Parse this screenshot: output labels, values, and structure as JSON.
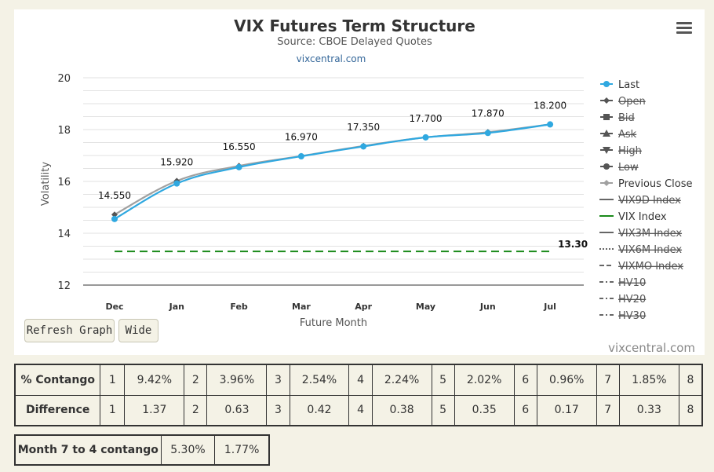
{
  "chart": {
    "title": "VIX Futures Term Structure",
    "subtitle": "Source: CBOE Delayed Quotes",
    "source_link": "vixcentral.com",
    "credit": "vixcentral.com",
    "menu_icon": "hamburger-menu-icon"
  },
  "buttons": {
    "refresh_label": "Refresh Graph",
    "wide_label": "Wide"
  },
  "chart_data": {
    "type": "line",
    "categories": [
      "Dec",
      "Jan",
      "Feb",
      "Mar",
      "Apr",
      "May",
      "Jun",
      "Jul"
    ],
    "xlabel": "Future Month",
    "ylabel": "Volatility",
    "ylim": [
      12,
      20
    ],
    "yticks": [
      "12",
      "14",
      "16",
      "18",
      "20"
    ],
    "grid": true,
    "legend_position": "right",
    "series": [
      {
        "name": "Last",
        "values": [
          14.55,
          15.92,
          16.55,
          16.97,
          17.35,
          17.7,
          17.87,
          18.2
        ],
        "color": "#2fa8e0",
        "marker": "circle"
      },
      {
        "name": "Previous Close",
        "values": [
          14.72,
          16.02,
          16.6,
          16.98,
          17.37,
          17.7,
          17.9,
          18.2
        ],
        "color": "#a0a0a0",
        "marker": "diamond"
      }
    ],
    "data_labels": [
      "14.550",
      "15.920",
      "16.550",
      "16.970",
      "17.350",
      "17.700",
      "17.870",
      "18.200"
    ],
    "vix_index": {
      "value": 13.3,
      "label": "13.30",
      "color": "#1a8a1a"
    }
  },
  "legend": [
    {
      "label": "Last",
      "hidden": false,
      "symbol": "circle",
      "color": "#2fa8e0"
    },
    {
      "label": "Open",
      "hidden": true,
      "symbol": "diamond",
      "color": "#555"
    },
    {
      "label": "Bid",
      "hidden": true,
      "symbol": "square",
      "color": "#555"
    },
    {
      "label": "Ask",
      "hidden": true,
      "symbol": "triangle",
      "color": "#555"
    },
    {
      "label": "High",
      "hidden": true,
      "symbol": "triangle-down",
      "color": "#555"
    },
    {
      "label": "Low",
      "hidden": true,
      "symbol": "circle",
      "color": "#555"
    },
    {
      "label": "Previous Close",
      "hidden": false,
      "symbol": "diamond",
      "color": "#a0a0a0"
    },
    {
      "label": "VIX9D Index",
      "hidden": true,
      "symbol": "line",
      "color": "#666"
    },
    {
      "label": "VIX Index",
      "hidden": false,
      "symbol": "line",
      "color": "#1a8a1a"
    },
    {
      "label": "VIX3M Index",
      "hidden": true,
      "symbol": "line",
      "color": "#666"
    },
    {
      "label": "VIX6M Index",
      "hidden": true,
      "symbol": "dotted",
      "color": "#666"
    },
    {
      "label": "VIXMO Index",
      "hidden": true,
      "symbol": "dashed",
      "color": "#666"
    },
    {
      "label": "HV10",
      "hidden": true,
      "symbol": "dashdot",
      "color": "#666"
    },
    {
      "label": "HV20",
      "hidden": true,
      "symbol": "dashdot",
      "color": "#666"
    },
    {
      "label": "HV30",
      "hidden": true,
      "symbol": "dashdot",
      "color": "#666"
    }
  ],
  "contango_table": {
    "rows": [
      {
        "label": "% Contango",
        "cells": [
          "1",
          "9.42%",
          "2",
          "3.96%",
          "3",
          "2.54%",
          "4",
          "2.24%",
          "5",
          "2.02%",
          "6",
          "0.96%",
          "7",
          "1.85%",
          "8"
        ]
      },
      {
        "label": "Difference",
        "cells": [
          "1",
          "1.37",
          "2",
          "0.63",
          "3",
          "0.42",
          "4",
          "0.38",
          "5",
          "0.35",
          "6",
          "0.17",
          "7",
          "0.33",
          "8"
        ]
      }
    ]
  },
  "month7to4": {
    "label": "Month 7 to 4 contango",
    "values": [
      "5.30%",
      "1.77%"
    ]
  }
}
